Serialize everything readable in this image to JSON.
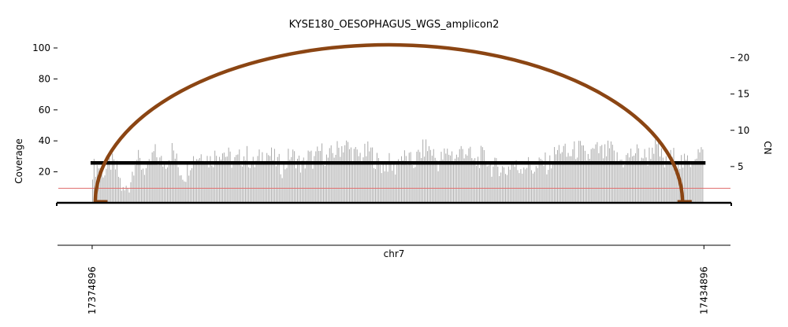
{
  "chart_data": {
    "type": "bar",
    "title": "KYSE180_OESOPHAGUS_WGS_amplicon2",
    "xlabel": "chr7",
    "ylabel_left": "Coverage",
    "ylabel_right": "CN",
    "x_range": [
      17371500,
      17437500
    ],
    "y_left_range": [
      0,
      100
    ],
    "y_left_ticks": [
      20,
      40,
      60,
      80,
      100
    ],
    "y_right_range": [
      0,
      21
    ],
    "y_right_ticks": [
      5,
      10,
      15,
      20
    ],
    "x_tick_labels": [
      "17374896",
      "17434896"
    ],
    "x_ticks": [
      17374896,
      17434896
    ],
    "coverage_range": [
      17374896,
      17434896
    ],
    "coverage_bin_count": 400,
    "coverage_anchor_values": [
      22,
      24,
      20,
      26,
      21,
      6,
      12,
      30,
      24,
      20,
      33,
      26,
      27,
      35,
      22,
      18,
      28,
      30,
      32,
      27,
      31,
      34,
      30,
      26,
      29,
      31,
      24,
      28,
      33,
      30,
      26,
      22,
      31,
      29,
      23,
      30,
      27,
      34,
      28,
      32,
      35,
      38,
      33,
      30,
      31,
      34,
      27,
      24,
      26,
      22,
      30,
      28,
      25,
      31,
      36,
      34,
      26,
      30,
      33,
      29,
      35,
      32,
      25,
      30,
      28,
      22,
      24,
      20,
      26,
      22,
      25,
      24,
      21,
      27,
      24,
      31,
      36,
      30,
      33,
      35,
      29,
      32,
      34,
      31,
      35,
      28,
      27,
      30,
      33,
      31,
      29,
      37,
      32,
      24,
      30,
      28,
      25,
      27,
      33,
      31
    ],
    "copy_number": 5.5,
    "threshold_cn": 2.0,
    "threshold_color": "#e07070",
    "bar_color": "#aaaaaa",
    "segment_color": "#000000",
    "arc_color": "#8B4513",
    "breakpoint_start": 17375200,
    "breakpoint_end": 17432800,
    "arc_peak_coverage": 102,
    "arc_foot_segments": [
      [
        17375200,
        17376400
      ],
      [
        17432300,
        17433700
      ]
    ]
  }
}
